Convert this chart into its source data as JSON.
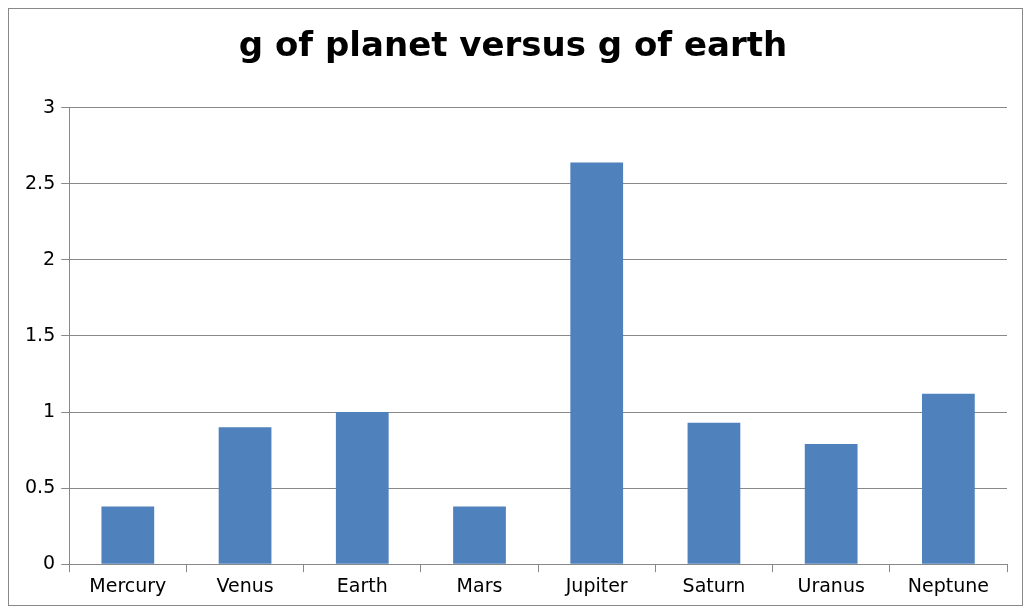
{
  "chart_data": {
    "type": "bar",
    "title": "g of planet versus g of earth",
    "categories": [
      "Mercury",
      "Venus",
      "Earth",
      "Mars",
      "Jupiter",
      "Saturn",
      "Uranus",
      "Neptune"
    ],
    "values": [
      0.38,
      0.9,
      1.0,
      0.38,
      2.64,
      0.93,
      0.79,
      1.12
    ],
    "color": "#4f81bd",
    "ylim": [
      0,
      3
    ],
    "yticks": [
      0,
      0.5,
      1,
      1.5,
      2,
      2.5,
      3
    ],
    "grid": "y",
    "legend": false
  }
}
